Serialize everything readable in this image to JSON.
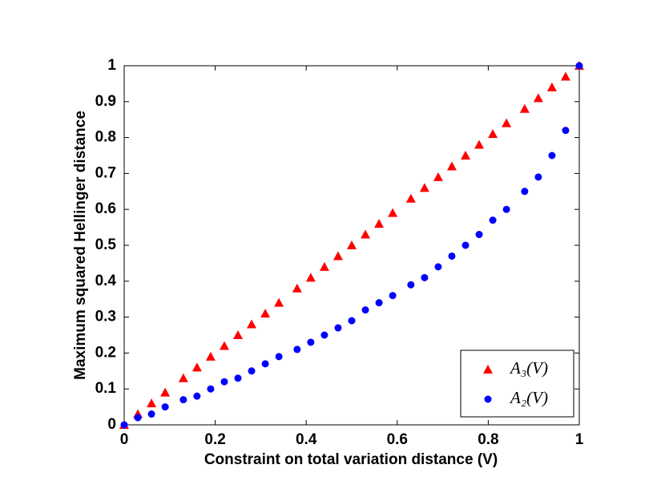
{
  "chart_data": {
    "type": "scatter",
    "x_label": "Constraint on total variation distance (V)",
    "y_label": "Maximum squared Hellinger distance",
    "x": [
      0,
      0.03,
      0.06,
      0.09,
      0.13,
      0.16,
      0.19,
      0.22,
      0.25,
      0.28,
      0.31,
      0.34,
      0.38,
      0.41,
      0.44,
      0.47,
      0.5,
      0.53,
      0.56,
      0.59,
      0.63,
      0.66,
      0.69,
      0.72,
      0.75,
      0.78,
      0.81,
      0.84,
      0.88,
      0.91,
      0.94,
      0.97,
      1
    ],
    "series": [
      {
        "name": "A₃(V)",
        "color": "#ff0000",
        "marker": "triangle",
        "values": [
          0,
          0.03,
          0.06,
          0.09,
          0.13,
          0.16,
          0.19,
          0.22,
          0.25,
          0.28,
          0.31,
          0.34,
          0.38,
          0.41,
          0.44,
          0.47,
          0.5,
          0.53,
          0.56,
          0.59,
          0.63,
          0.66,
          0.69,
          0.72,
          0.75,
          0.78,
          0.81,
          0.84,
          0.88,
          0.91,
          0.94,
          0.97,
          1
        ]
      },
      {
        "name": "A₂(V)",
        "color": "#0000ff",
        "marker": "circle",
        "values": [
          0,
          0.02,
          0.03,
          0.05,
          0.07,
          0.08,
          0.1,
          0.12,
          0.13,
          0.15,
          0.17,
          0.19,
          0.21,
          0.23,
          0.25,
          0.27,
          0.29,
          0.32,
          0.34,
          0.36,
          0.39,
          0.41,
          0.44,
          0.47,
          0.5,
          0.53,
          0.57,
          0.6,
          0.65,
          0.69,
          0.75,
          0.82,
          1
        ]
      }
    ],
    "xlim": [
      0,
      1
    ],
    "xticks": [
      0,
      0.2,
      0.4,
      0.6,
      0.8,
      1
    ],
    "ylim": [
      0,
      1
    ],
    "yticks": [
      0,
      0.1,
      0.2,
      0.3,
      0.4,
      0.5,
      0.6,
      0.7,
      0.8,
      0.9,
      1
    ],
    "grid": false,
    "legend_position": "lower right"
  }
}
